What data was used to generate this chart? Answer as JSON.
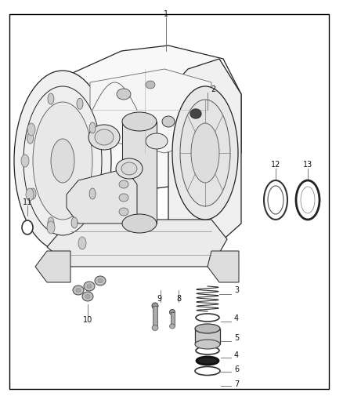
{
  "background_color": "#ffffff",
  "border_color": "#000000",
  "label_color": "#111111",
  "line_color": "#222222",
  "figsize": [
    4.38,
    5.33
  ],
  "dpi": 100,
  "lw_main": 0.8,
  "lw_thin": 0.5,
  "lw_leader": 0.5,
  "label_fs": 7.0
}
